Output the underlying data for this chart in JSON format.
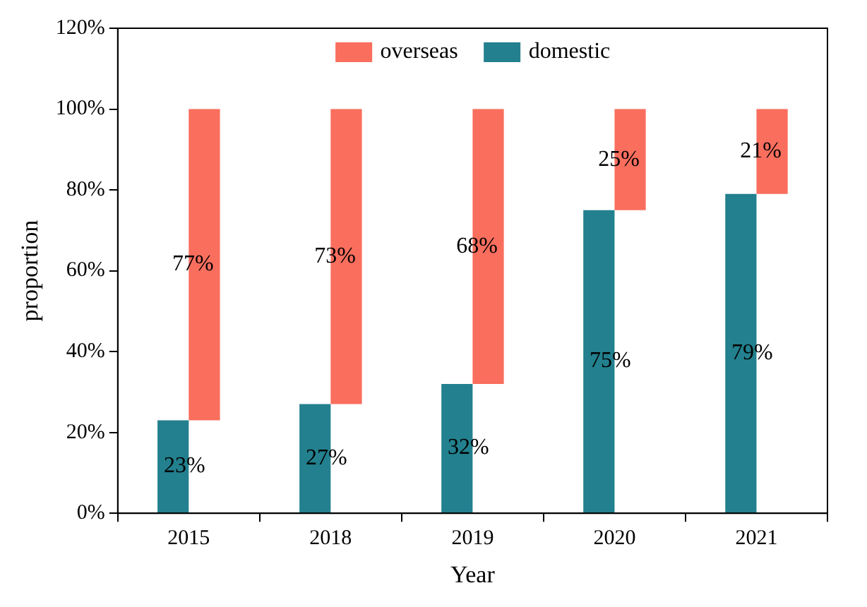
{
  "chart_data": {
    "type": "bar",
    "xlabel": "Year",
    "ylabel": "proportion",
    "categories": [
      "2015",
      "2018",
      "2019",
      "2020",
      "2021"
    ],
    "series": [
      {
        "name": "domestic",
        "color": "#23808e",
        "values": [
          23,
          27,
          32,
          75,
          79
        ],
        "value_labels": [
          "23%",
          "27%",
          "32%",
          "75%",
          "79%"
        ]
      },
      {
        "name": "overseas",
        "color": "#fa6e5e",
        "values": [
          77,
          73,
          68,
          25,
          21
        ],
        "base": [
          23,
          27,
          32,
          75,
          79
        ],
        "value_labels": [
          "77%",
          "73%",
          "68%",
          "25%",
          "21%"
        ]
      }
    ],
    "ylim": [
      0,
      120
    ],
    "yticks": [
      {
        "value": 0,
        "label": "0%"
      },
      {
        "value": 20,
        "label": "20%"
      },
      {
        "value": 40,
        "label": "40%"
      },
      {
        "value": 60,
        "label": "60%"
      },
      {
        "value": 80,
        "label": "80%"
      },
      {
        "value": 100,
        "label": "100%"
      },
      {
        "value": 120,
        "label": "120%"
      }
    ],
    "legend": "top"
  }
}
